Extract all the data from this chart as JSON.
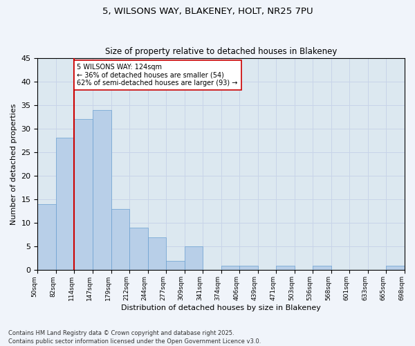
{
  "title": "5, WILSONS WAY, BLAKENEY, HOLT, NR25 7PU",
  "subtitle": "Size of property relative to detached houses in Blakeney",
  "xlabel": "Distribution of detached houses by size in Blakeney",
  "ylabel": "Number of detached properties",
  "bar_values": [
    14,
    28,
    32,
    34,
    13,
    9,
    7,
    2,
    5,
    0,
    1,
    1,
    0,
    1,
    0,
    1,
    0,
    0,
    0,
    1
  ],
  "bar_labels": [
    "50sqm",
    "82sqm",
    "114sqm",
    "147sqm",
    "179sqm",
    "212sqm",
    "244sqm",
    "277sqm",
    "309sqm",
    "341sqm",
    "374sqm",
    "406sqm",
    "439sqm",
    "471sqm",
    "503sqm",
    "536sqm",
    "568sqm",
    "601sqm",
    "633sqm",
    "665sqm",
    "698sqm"
  ],
  "bar_color": "#b8cfe8",
  "bar_edge_color": "#6a9fd0",
  "vline_color": "#cc0000",
  "annotation_text": "5 WILSONS WAY: 124sqm\n← 36% of detached houses are smaller (54)\n62% of semi-detached houses are larger (93) →",
  "annotation_box_color": "#ffffff",
  "annotation_box_edge": "#cc0000",
  "ylim": [
    0,
    45
  ],
  "yticks": [
    0,
    5,
    10,
    15,
    20,
    25,
    30,
    35,
    40,
    45
  ],
  "grid_color": "#c8d4e8",
  "background_color": "#dce8f0",
  "fig_background": "#f0f4fa",
  "footnote": "Contains HM Land Registry data © Crown copyright and database right 2025.\nContains public sector information licensed under the Open Government Licence v3.0."
}
